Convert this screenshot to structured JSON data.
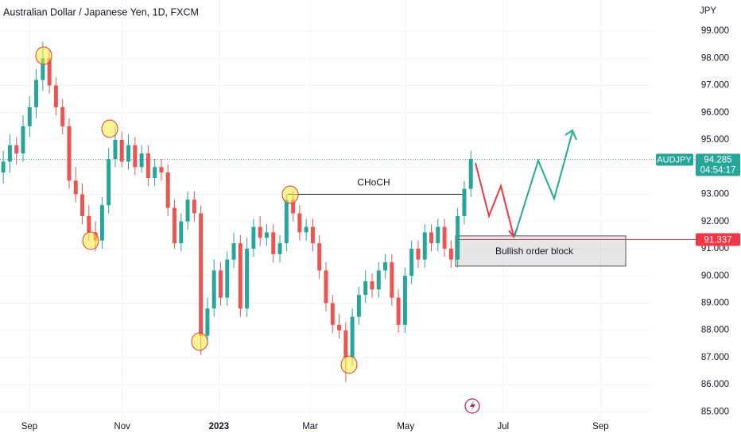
{
  "chart_data": {
    "type": "candlestick",
    "title": "Australian Dollar / Japanese Yen, 1D, FXCM",
    "currency": "JPY",
    "symbol": "AUDJPY",
    "last_price": 94.285,
    "last_price_label": "94.285",
    "countdown": "04:54:17",
    "target_price": 91.337,
    "target_price_label": "91.337",
    "choch_label": "CHoCH",
    "choch_level": 93.0,
    "order_block_label": "Bullish order block",
    "order_block_top": 91.47,
    "order_block_bottom": 90.36,
    "up_color": "#26a69a",
    "down_color": "#ef5350",
    "grid": true,
    "xlim": [
      0,
      99
    ],
    "xticks": [
      {
        "value": 4.46,
        "label": "Sep"
      },
      {
        "value": 18.55,
        "label": "Nov"
      },
      {
        "value": 33.25,
        "label": "2023"
      },
      {
        "value": 47.1,
        "label": "Mar"
      },
      {
        "value": 61.6,
        "label": "May"
      },
      {
        "value": 76.4,
        "label": "Jul"
      },
      {
        "value": 91.2,
        "label": "Sep"
      }
    ],
    "ylim": [
      84.75,
      100.14
    ],
    "yticks": [
      {
        "value": 85,
        "label": "85.000"
      },
      {
        "value": 86,
        "label": "86.000"
      },
      {
        "value": 87,
        "label": "87.000"
      },
      {
        "value": 88,
        "label": "88.000"
      },
      {
        "value": 89,
        "label": "89.000"
      },
      {
        "value": 90,
        "label": "90.000"
      },
      {
        "value": 91,
        "label": "91.000"
      },
      {
        "value": 92,
        "label": "92.000"
      },
      {
        "value": 93,
        "label": "93.000"
      },
      {
        "value": 94,
        "label": "94.000"
      },
      {
        "value": 95,
        "label": "95.000"
      },
      {
        "value": 96,
        "label": "96.000"
      },
      {
        "value": 97,
        "label": "97.000"
      },
      {
        "value": 98,
        "label": "98.000"
      },
      {
        "value": 99,
        "label": "99.000"
      }
    ],
    "open": [
      93.8,
      94.2,
      94.8,
      94.5,
      95.5,
      96.2,
      97.2,
      98.0,
      97.0,
      96.2,
      95.5,
      93.5,
      93.0,
      92.2,
      91.6,
      91.3,
      92.6,
      94.3,
      95.0,
      94.2,
      94.8,
      94.0,
      94.5,
      93.6,
      94.0,
      93.8,
      92.5,
      91.2,
      92.0,
      92.8,
      92.3,
      87.8,
      88.8,
      90.2,
      89.2,
      90.6,
      91.2,
      88.8,
      91.0,
      91.8,
      91.4,
      91.6,
      90.8,
      91.2,
      92.8,
      92.3,
      91.6,
      91.8,
      91.2,
      90.2,
      89.0,
      88.2,
      88.0,
      87.0,
      88.5,
      89.3,
      89.8,
      89.5,
      90.2,
      90.5,
      89.2,
      88.2,
      90.0,
      91.0,
      90.6,
      91.6,
      91.2,
      91.8,
      91.0,
      90.6,
      92.2,
      93.2
    ],
    "high": [
      94.6,
      95.2,
      95.1,
      95.9,
      96.6,
      97.6,
      98.6,
      98.3,
      97.3,
      96.5,
      95.8,
      94.0,
      93.4,
      92.6,
      92.0,
      92.9,
      94.7,
      95.5,
      95.3,
      95.2,
      95.1,
      94.8,
      94.8,
      94.3,
      94.3,
      94.1,
      92.8,
      92.3,
      93.1,
      93.1,
      92.6,
      89.2,
      90.6,
      90.5,
      90.9,
      91.6,
      91.5,
      91.4,
      92.1,
      92.2,
      91.9,
      91.9,
      91.5,
      93.0,
      93.1,
      92.6,
      92.1,
      92.1,
      91.5,
      90.5,
      89.3,
      88.6,
      88.3,
      88.8,
      89.6,
      90.2,
      90.1,
      90.5,
      90.8,
      90.8,
      89.5,
      90.3,
      91.3,
      91.3,
      91.9,
      91.9,
      92.1,
      92.1,
      91.3,
      92.5,
      93.5,
      94.6
    ],
    "low": [
      93.4,
      93.8,
      94.1,
      94.2,
      95.1,
      95.8,
      96.8,
      96.7,
      95.9,
      95.2,
      93.2,
      92.7,
      91.9,
      91.3,
      90.9,
      91.0,
      92.3,
      94.0,
      94.0,
      93.9,
      93.7,
      93.8,
      93.3,
      93.3,
      93.5,
      92.2,
      91.0,
      90.9,
      91.7,
      92.0,
      87.1,
      87.5,
      88.5,
      88.9,
      88.9,
      90.3,
      88.5,
      88.5,
      90.7,
      91.1,
      91.1,
      90.5,
      90.5,
      90.9,
      92.0,
      91.3,
      91.3,
      90.9,
      89.9,
      88.7,
      87.9,
      87.7,
      86.1,
      86.7,
      88.2,
      89.0,
      89.2,
      89.2,
      89.9,
      88.9,
      87.9,
      87.9,
      89.7,
      90.3,
      90.3,
      90.9,
      90.9,
      90.7,
      90.3,
      90.3,
      91.9,
      92.9
    ],
    "close": [
      94.2,
      94.8,
      94.5,
      95.5,
      96.2,
      97.2,
      98.0,
      97.0,
      96.2,
      95.5,
      93.5,
      93.0,
      92.2,
      91.6,
      91.3,
      92.6,
      94.3,
      95.0,
      94.2,
      94.8,
      94.0,
      94.5,
      93.6,
      94.0,
      93.8,
      92.5,
      91.2,
      92.0,
      92.8,
      92.3,
      87.8,
      88.8,
      90.2,
      89.2,
      90.6,
      91.2,
      88.8,
      91.0,
      91.8,
      91.4,
      91.6,
      90.8,
      91.2,
      92.8,
      92.3,
      91.6,
      91.8,
      91.2,
      90.2,
      89.0,
      88.2,
      88.0,
      87.0,
      88.5,
      89.3,
      89.8,
      89.5,
      90.2,
      90.5,
      89.2,
      88.2,
      90.0,
      91.0,
      90.6,
      91.6,
      91.2,
      91.8,
      91.0,
      90.6,
      92.2,
      93.2,
      94.3
    ]
  }
}
